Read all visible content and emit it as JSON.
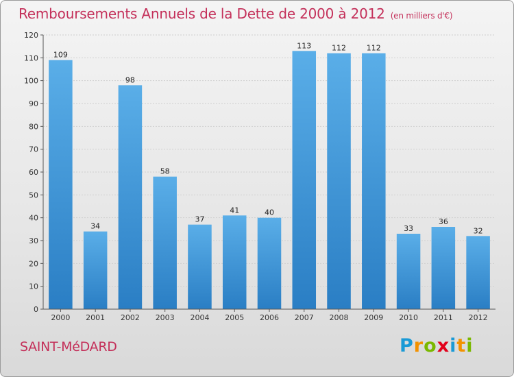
{
  "title": "Remboursements Annuels de la Dette de 2000 à 2012",
  "unit": "(en milliers d'€)",
  "town": "SAINT-MéDARD",
  "logo": {
    "letters": [
      "P",
      "r",
      "o",
      "x",
      "i",
      "t",
      "i"
    ],
    "colors": [
      "#1a9ad6",
      "#f39200",
      "#7ab800",
      "#e2001a",
      "#1a9ad6",
      "#f39200",
      "#7ab800"
    ]
  },
  "chart_data": {
    "type": "bar",
    "categories": [
      "2000",
      "2001",
      "2002",
      "2003",
      "2004",
      "2005",
      "2006",
      "2007",
      "2008",
      "2009",
      "2010",
      "2011",
      "2012"
    ],
    "values": [
      109,
      34,
      98,
      58,
      37,
      41,
      40,
      113,
      112,
      112,
      33,
      36,
      32
    ],
    "data_labels": [
      "109",
      "34",
      "98",
      "58",
      "37",
      "41",
      "40",
      "113",
      "112",
      "112",
      "33",
      "36",
      "32"
    ],
    "title": "Remboursements Annuels de la Dette de 2000 à 2012",
    "ylim": [
      0,
      120
    ],
    "yticks": [
      0,
      10,
      20,
      30,
      40,
      50,
      60,
      70,
      80,
      90,
      100,
      110,
      120
    ],
    "grid": true,
    "bar_color": "#4a9fe0"
  }
}
